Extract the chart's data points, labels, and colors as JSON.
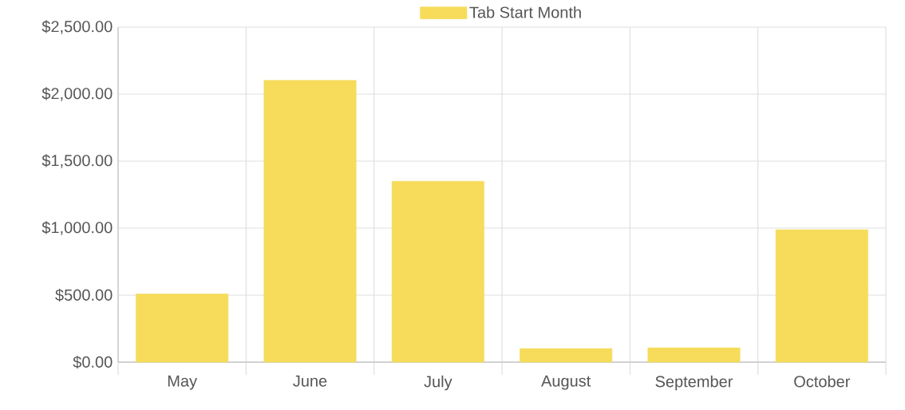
{
  "chart_data": {
    "type": "bar",
    "categories": [
      "May",
      "June",
      "July",
      "August",
      "September",
      "October"
    ],
    "series": [
      {
        "name": "Tab Start Month",
        "color": "#f6dc5a",
        "values": [
          509,
          2103,
          1350,
          101,
          107,
          988
        ]
      }
    ],
    "ylim": [
      0,
      2500
    ],
    "yticks": [
      {
        "value": 0,
        "label": "$0.00"
      },
      {
        "value": 500,
        "label": "$500.00"
      },
      {
        "value": 1000,
        "label": "$1,000.00"
      },
      {
        "value": 1500,
        "label": "$1,500.00"
      },
      {
        "value": 2000,
        "label": "$2,000.00"
      },
      {
        "value": 2500,
        "label": "$2,500.00"
      }
    ],
    "grid": true,
    "legend": "top"
  }
}
